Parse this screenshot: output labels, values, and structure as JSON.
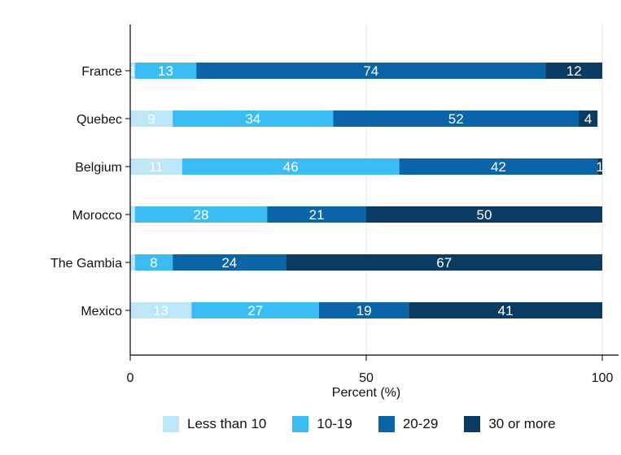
{
  "chart_data": {
    "type": "bar",
    "orientation": "horizontal",
    "stacked": true,
    "categories": [
      "France",
      "Quebec",
      "Belgium",
      "Morocco",
      "The Gambia",
      "Mexico"
    ],
    "series": [
      {
        "name": "Less than 10",
        "values": [
          1,
          9,
          11,
          1,
          1,
          13
        ],
        "color": "#bde6f7"
      },
      {
        "name": "10-19",
        "values": [
          13,
          34,
          46,
          28,
          8,
          27
        ],
        "color": "#3bbcf2"
      },
      {
        "name": "20-29",
        "values": [
          74,
          52,
          42,
          21,
          24,
          19
        ],
        "color": "#0a65a8"
      },
      {
        "name": "30 or more",
        "values": [
          12,
          4,
          1,
          50,
          67,
          41
        ],
        "color": "#0a3c63"
      }
    ],
    "data_labels": [
      [
        "1",
        "13",
        "74",
        "12"
      ],
      [
        "9",
        "34",
        "52",
        "4"
      ],
      [
        "11",
        "46",
        "42",
        "1"
      ],
      [
        "",
        "28",
        "21",
        "50"
      ],
      [
        "",
        "8",
        "24",
        "67"
      ],
      [
        "13",
        "27",
        "19",
        "41"
      ]
    ],
    "xlabel": "Percent (%)",
    "ylabel": "",
    "xlim": [
      0,
      100
    ],
    "xticks": [
      0,
      50,
      100
    ],
    "xtick_labels": [
      "0",
      "50",
      "100"
    ],
    "grid": "vertical lines at ticks",
    "legend_position": "bottom"
  }
}
